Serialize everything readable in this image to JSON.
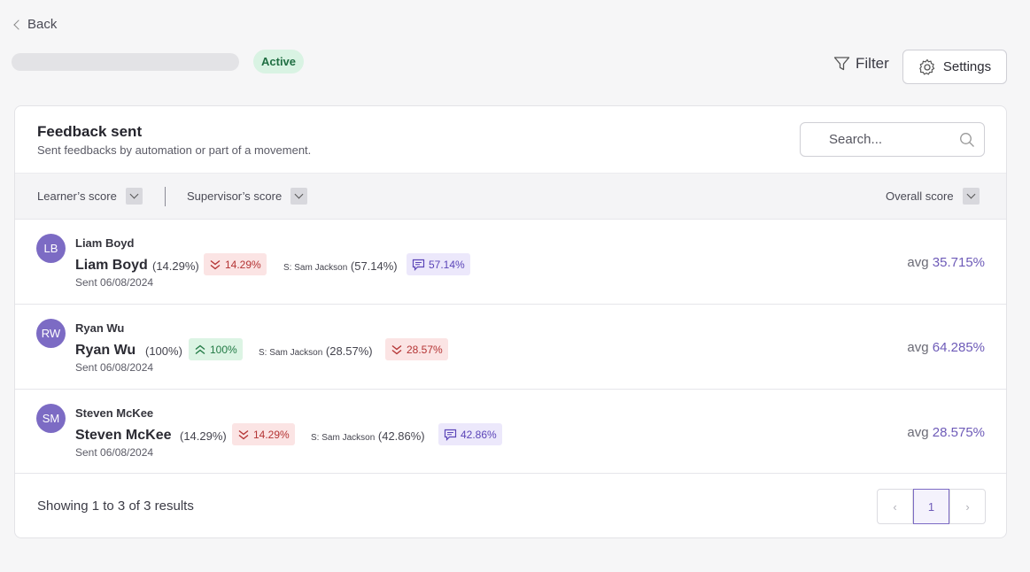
{
  "header": {
    "back_label": "Back",
    "status_badge": "Active",
    "filter_label": "Filter",
    "settings_label": "Settings"
  },
  "card": {
    "title": "Feedback sent",
    "subtitle": "Sent feedbacks by automation or part of a movement.",
    "search_placeholder": "Search..."
  },
  "filters": {
    "learner_score": "Learner’s score",
    "supervisor_score": "Supervisor’s score",
    "overall_score": "Overall score"
  },
  "rows": [
    {
      "initials": "LB",
      "name_top": "Liam Boyd",
      "name": "Liam Boyd",
      "learner_pct": "(14.29%)",
      "learner_chip": "14.29%",
      "learner_trend": "down",
      "sup_prefix": "S: Sam Jackson",
      "sup_pct": "(57.14%)",
      "sup_chip": "57.14%",
      "sup_chip_type": "msg",
      "sent": "Sent 06/08/2024",
      "avg_label": "avg",
      "avg_value": "35.715%"
    },
    {
      "initials": "RW",
      "name_top": "Ryan Wu",
      "name": "Ryan Wu",
      "learner_pct": "(100%)",
      "learner_chip": "100%",
      "learner_trend": "up",
      "sup_prefix": "S: Sam Jackson",
      "sup_pct": "(28.57%)",
      "sup_chip": "28.57%",
      "sup_chip_type": "down",
      "sent": "Sent 06/08/2024",
      "avg_label": "avg",
      "avg_value": "64.285%"
    },
    {
      "initials": "SM",
      "name_top": "Steven McKee",
      "name": "Steven McKee",
      "learner_pct": "(14.29%)",
      "learner_chip": "14.29%",
      "learner_trend": "down",
      "sup_prefix": "S: Sam Jackson",
      "sup_pct": "(42.86%)",
      "sup_chip": "42.86%",
      "sup_chip_type": "msg",
      "sent": "Sent 06/08/2024",
      "avg_label": "avg",
      "avg_value": "28.575%"
    }
  ],
  "footer": {
    "results_prefix": "Showing",
    "from": "1",
    "to_word": "to",
    "to": "3",
    "of_word": "of",
    "total": "3",
    "results_suffix": "results",
    "page": "1",
    "prev_glyph": "‹",
    "next_glyph": "›"
  }
}
